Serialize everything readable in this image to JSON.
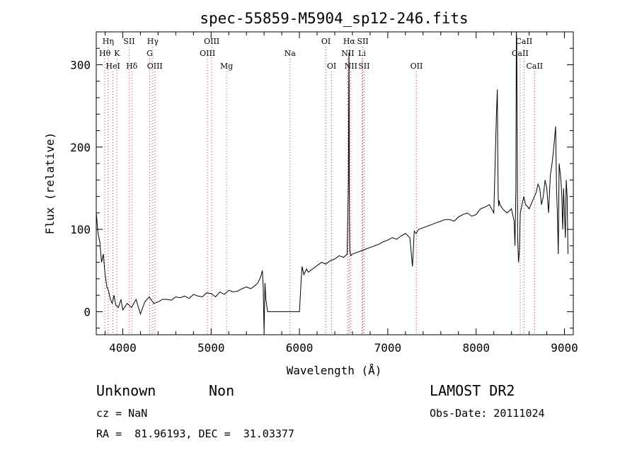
{
  "chart_data": {
    "type": "line",
    "title": "spec-55859-M5904_sp12-246.fits",
    "xlabel": "Wavelength (Å)",
    "ylabel": "Flux (relative)",
    "xlim": [
      3700,
      9100
    ],
    "ylim": [
      -28,
      340
    ],
    "xticks": [
      4000,
      5000,
      6000,
      7000,
      8000,
      9000
    ],
    "yticks": [
      0,
      100,
      200,
      300
    ],
    "grid": false,
    "series": [
      {
        "x": [
          3700,
          3720,
          3740,
          3760,
          3780,
          3800,
          3820,
          3840,
          3860,
          3880,
          3900,
          3920,
          3950,
          3980,
          4000,
          4050,
          4100,
          4150,
          4200,
          4250,
          4300,
          4350,
          4400,
          4450,
          4500,
          4550,
          4600,
          4650,
          4700,
          4750,
          4800,
          4850,
          4900,
          4950,
          5000,
          5050,
          5100,
          5150,
          5200,
          5250,
          5300,
          5350,
          5400,
          5450,
          5500,
          5530,
          5560,
          5580,
          5590,
          5600,
          5610,
          5620,
          5640,
          5660,
          5680,
          5700,
          5800,
          5900,
          6000,
          6020,
          6030,
          6050,
          6080,
          6100,
          6150,
          6200,
          6250,
          6300,
          6350,
          6400,
          6450,
          6500,
          6540,
          6555,
          6560,
          6563,
          6566,
          6570,
          6580,
          6600,
          6650,
          6700,
          6750,
          6800,
          6850,
          6900,
          6950,
          7000,
          7050,
          7100,
          7150,
          7200,
          7250,
          7280,
          7300,
          7320,
          7350,
          7400,
          7450,
          7500,
          7550,
          7600,
          7650,
          7700,
          7750,
          7800,
          7850,
          7900,
          7950,
          8000,
          8050,
          8100,
          8150,
          8200,
          8230,
          8240,
          8245,
          8250,
          8255,
          8260,
          8270,
          8300,
          8350,
          8400,
          8430,
          8440,
          8450,
          8455,
          8460,
          8470,
          8480,
          8490,
          8500,
          8520,
          8540,
          8560,
          8580,
          8600,
          8620,
          8640,
          8660,
          8680,
          8700,
          8720,
          8740,
          8760,
          8780,
          8800,
          8820,
          8840,
          8860,
          8880,
          8900,
          8910,
          8920,
          8930,
          8940,
          8950,
          8960,
          8970,
          8980,
          8990,
          9000,
          9010,
          9020,
          9030,
          9040
        ],
        "y": [
          120,
          95,
          85,
          60,
          70,
          45,
          30,
          25,
          15,
          10,
          20,
          8,
          5,
          15,
          2,
          10,
          5,
          15,
          -3,
          12,
          18,
          10,
          12,
          15,
          15,
          14,
          18,
          17,
          19,
          16,
          21,
          19,
          18,
          23,
          22,
          18,
          24,
          21,
          26,
          24,
          25,
          28,
          30,
          28,
          32,
          35,
          42,
          50,
          30,
          -25,
          35,
          15,
          0,
          0,
          0,
          0,
          0,
          0,
          0,
          40,
          55,
          45,
          52,
          48,
          52,
          56,
          60,
          58,
          62,
          64,
          68,
          66,
          70,
          160,
          315,
          270,
          120,
          75,
          68,
          70,
          72,
          74,
          76,
          78,
          80,
          82,
          85,
          87,
          90,
          88,
          92,
          95,
          90,
          55,
          98,
          95,
          100,
          102,
          104,
          106,
          108,
          110,
          112,
          112,
          110,
          115,
          118,
          120,
          116,
          118,
          125,
          127,
          130,
          120,
          240,
          270,
          190,
          140,
          128,
          135,
          130,
          125,
          120,
          125,
          110,
          80,
          150,
          340,
          330,
          90,
          60,
          75,
          120,
          130,
          140,
          130,
          128,
          125,
          130,
          135,
          140,
          145,
          155,
          150,
          130,
          140,
          160,
          150,
          120,
          165,
          180,
          200,
          225,
          150,
          120,
          70,
          180,
          170,
          160,
          140,
          100,
          150,
          120,
          90,
          160,
          140,
          70
        ]
      }
    ],
    "emission_lines": [
      {
        "label": "Hη",
        "x": 3835,
        "row": 1
      },
      {
        "label": "Hθ",
        "x": 3797,
        "row": 2
      },
      {
        "label": "HeI",
        "x": 3889,
        "row": 3
      },
      {
        "label": "SII",
        "x": 4072,
        "row": 1
      },
      {
        "label": "K",
        "x": 3934,
        "row": 2
      },
      {
        "label": "Hδ",
        "x": 4102,
        "row": 3
      },
      {
        "label": "Hγ",
        "x": 4340,
        "row": 1
      },
      {
        "label": "G",
        "x": 4305,
        "row": 2
      },
      {
        "label": "OIII",
        "x": 4363,
        "row": 3
      },
      {
        "label": "OIII",
        "x": 5007,
        "row": 1
      },
      {
        "label": "OIII",
        "x": 4959,
        "row": 2
      },
      {
        "label": "Mg",
        "x": 5175,
        "row": 3
      },
      {
        "label": "Na",
        "x": 5893,
        "row": 2
      },
      {
        "label": "OI",
        "x": 6300,
        "row": 1
      },
      {
        "label": "OI",
        "x": 6364,
        "row": 3
      },
      {
        "label": "Hα",
        "x": 6563,
        "row": 1
      },
      {
        "label": "SII",
        "x": 6717,
        "row": 1
      },
      {
        "label": "NII",
        "x": 6548,
        "row": 2
      },
      {
        "label": "Li",
        "x": 6708,
        "row": 2
      },
      {
        "label": "NII",
        "x": 6583,
        "row": 3
      },
      {
        "label": "SII",
        "x": 6731,
        "row": 3
      },
      {
        "label": "OII",
        "x": 7325,
        "row": 3
      },
      {
        "label": "CaII",
        "x": 8542,
        "row": 1
      },
      {
        "label": "CaII",
        "x": 8498,
        "row": 2
      },
      {
        "label": "CaII",
        "x": 8662,
        "row": 3
      }
    ]
  },
  "info": {
    "class": "Unknown",
    "subclass": "Non",
    "survey": "LAMOST DR2",
    "cz": "cz = NaN",
    "obs_date": "Obs-Date: 20111024",
    "coords": "RA =  81.96193, DEC =  31.03377"
  }
}
